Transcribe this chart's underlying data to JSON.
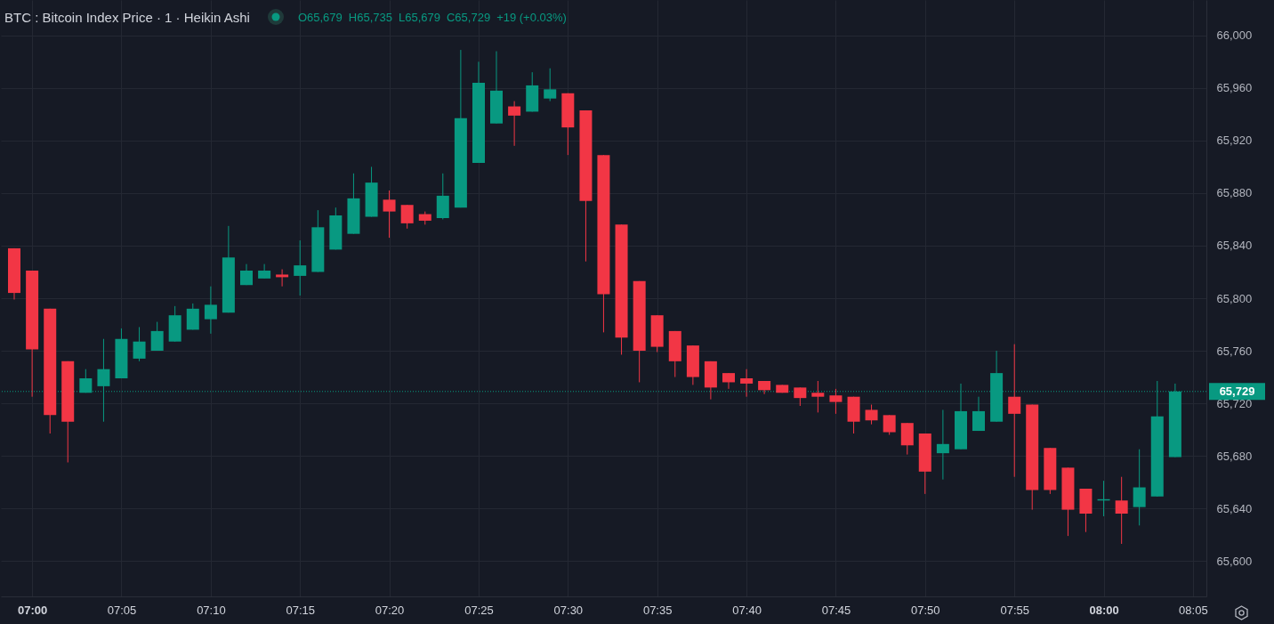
{
  "chart_data": {
    "type": "candlestick",
    "title": "BTC : Bitcoin Index Price · 1 · Heikin Ashi",
    "annotations": [
      "O65,679",
      "H65,735",
      "L65,679",
      "C65,729",
      "+19 (+0.03%)"
    ],
    "x": [
      6.9833,
      7,
      7.0167,
      7.0333,
      7.05,
      7.0667,
      7.0833,
      7.1,
      7.1167,
      7.1333,
      7.15,
      7.1667,
      7.1833,
      7.2,
      7.2167,
      7.2333,
      7.25,
      7.2667,
      7.2833,
      7.3,
      7.3167,
      7.3333,
      7.35,
      7.3667,
      7.3833,
      7.4,
      7.4167,
      7.4333,
      7.45,
      7.4667,
      7.4833,
      7.5,
      7.5167,
      7.5333,
      7.55,
      7.5667,
      7.5833,
      7.6,
      7.6167,
      7.6333,
      7.65,
      7.6667,
      7.6833,
      7.7,
      7.7167,
      7.7333,
      7.75,
      7.7667,
      7.7833,
      7.8,
      7.8167,
      7.8333,
      7.85,
      7.8667,
      7.8833,
      7.9,
      7.9167,
      7.9333,
      7.95,
      7.9667,
      7.9833,
      8,
      8.0167,
      8.0333,
      8.05,
      8.0667
    ],
    "ohlc": [
      [
        65838,
        65838,
        65799,
        65804
      ],
      [
        65821,
        65821,
        65725,
        65761
      ],
      [
        65792,
        65792,
        65697,
        65711
      ],
      [
        65752,
        65752,
        65675,
        65706
      ],
      [
        65728,
        65746,
        65728,
        65739
      ],
      [
        65733,
        65769,
        65706,
        65746
      ],
      [
        65739,
        65777,
        65739,
        65769
      ],
      [
        65754,
        65778,
        65752,
        65767
      ],
      [
        65760,
        65782,
        65760,
        65775
      ],
      [
        65767,
        65794,
        65767,
        65787
      ],
      [
        65776,
        65796,
        65776,
        65792
      ],
      [
        65784,
        65809,
        65773,
        65795
      ],
      [
        65789,
        65855,
        65789,
        65831
      ],
      [
        65810,
        65826,
        65810,
        65821
      ],
      [
        65815,
        65826,
        65815,
        65821
      ],
      [
        65818,
        65822,
        65809,
        65816
      ],
      [
        65817,
        65844,
        65802,
        65825
      ],
      [
        65820,
        65867,
        65820,
        65854
      ],
      [
        65837,
        65869,
        65837,
        65863
      ],
      [
        65849,
        65895,
        65849,
        65876
      ],
      [
        65862,
        65900,
        65862,
        65888
      ],
      [
        65875,
        65882,
        65846,
        65866
      ],
      [
        65871,
        65871,
        65853,
        65857
      ],
      [
        65864,
        65866,
        65856,
        65859
      ],
      [
        65861,
        65895,
        65860,
        65878
      ],
      [
        65869,
        65989,
        65869,
        65937
      ],
      [
        65903,
        65980,
        65903,
        65964
      ],
      [
        65933,
        65988,
        65933,
        65958
      ],
      [
        65946,
        65950,
        65916,
        65939
      ],
      [
        65942,
        65972,
        65942,
        65962
      ],
      [
        65952,
        65975,
        65950,
        65959
      ],
      [
        65956,
        65956,
        65909,
        65930
      ],
      [
        65943,
        65943,
        65828,
        65874
      ],
      [
        65909,
        65909,
        65774,
        65803
      ],
      [
        65856,
        65856,
        65757,
        65770
      ],
      [
        65813,
        65813,
        65736,
        65760
      ],
      [
        65787,
        65787,
        65759,
        65763
      ],
      [
        65775,
        65775,
        65740,
        65752
      ],
      [
        65764,
        65764,
        65734,
        65740
      ],
      [
        65752,
        65752,
        65723,
        65732
      ],
      [
        65743,
        65743,
        65731,
        65736
      ],
      [
        65739,
        65746,
        65725,
        65735
      ],
      [
        65737,
        65737,
        65727,
        65730
      ],
      [
        65734,
        65734,
        65728,
        65728
      ],
      [
        65732,
        65732,
        65718,
        65724
      ],
      [
        65728,
        65737,
        65713,
        65725
      ],
      [
        65726,
        65731,
        65712,
        65721
      ],
      [
        65725,
        65725,
        65697,
        65706
      ],
      [
        65715,
        65719,
        65704,
        65707
      ],
      [
        65711,
        65711,
        65696,
        65698
      ],
      [
        65705,
        65705,
        65681,
        65688
      ],
      [
        65697,
        65697,
        65651,
        65668
      ],
      [
        65682,
        65715,
        65662,
        65689
      ],
      [
        65685,
        65735,
        65685,
        65714
      ],
      [
        65699,
        65725,
        65699,
        65714
      ],
      [
        65706,
        65760,
        65706,
        65743
      ],
      [
        65725,
        65765,
        65664,
        65712
      ],
      [
        65719,
        65719,
        65639,
        65654
      ],
      [
        65686,
        65686,
        65651,
        65654
      ],
      [
        65671,
        65671,
        65619,
        65639
      ],
      [
        65655,
        65655,
        65622,
        65636
      ],
      [
        65646,
        65661,
        65634,
        65647
      ],
      [
        65646,
        65664,
        65613,
        65636
      ],
      [
        65641,
        65685,
        65627,
        65656
      ],
      [
        65649,
        65737,
        65649,
        65710
      ],
      [
        65679,
        65735,
        65679,
        65729
      ]
    ],
    "colors": [
      "#f23645",
      "#f23645",
      "#f23645",
      "#f23645",
      "#089981",
      "#089981",
      "#089981",
      "#089981",
      "#089981",
      "#089981",
      "#089981",
      "#089981",
      "#089981",
      "#089981",
      "#089981",
      "#f23645",
      "#089981",
      "#089981",
      "#089981",
      "#089981",
      "#089981",
      "#f23645",
      "#f23645",
      "#f23645",
      "#089981",
      "#089981",
      "#089981",
      "#089981",
      "#f23645",
      "#089981",
      "#089981",
      "#f23645",
      "#f23645",
      "#f23645",
      "#f23645",
      "#f23645",
      "#f23645",
      "#f23645",
      "#f23645",
      "#f23645",
      "#f23645",
      "#f23645",
      "#f23645",
      "#f23645",
      "#f23645",
      "#f23645",
      "#f23645",
      "#f23645",
      "#f23645",
      "#f23645",
      "#f23645",
      "#f23645",
      "#089981",
      "#089981",
      "#089981",
      "#089981",
      "#f23645",
      "#f23645",
      "#f23645",
      "#f23645",
      "#f23645",
      "#089981",
      "#f23645",
      "#089981",
      "#089981",
      "#089981"
    ],
    "xlim": [
      6.975,
      8.0917
    ],
    "xticks": [
      {
        "value": 7,
        "label": "07:00"
      },
      {
        "value": 7.0833,
        "label": "07:05"
      },
      {
        "value": 7.1667,
        "label": "07:10"
      },
      {
        "value": 7.25,
        "label": "07:15"
      },
      {
        "value": 7.3333,
        "label": "07:20"
      },
      {
        "value": 7.4167,
        "label": "07:25"
      },
      {
        "value": 7.5,
        "label": "07:30"
      },
      {
        "value": 7.5833,
        "label": "07:35"
      },
      {
        "value": 7.6667,
        "label": "07:40"
      },
      {
        "value": 7.75,
        "label": "07:45"
      },
      {
        "value": 7.8333,
        "label": "07:50"
      },
      {
        "value": 7.9167,
        "label": "07:55"
      },
      {
        "value": 8,
        "label": "08:00"
      },
      {
        "value": 8.0833,
        "label": "08:05"
      }
    ],
    "ylim": [
      65573,
      66027
    ],
    "yticks": [
      {
        "value": 65600,
        "label": "65,600"
      },
      {
        "value": 65640,
        "label": "65,640"
      },
      {
        "value": 65680,
        "label": "65,680"
      },
      {
        "value": 65720,
        "label": "65,720"
      },
      {
        "value": 65760,
        "label": "65,760"
      },
      {
        "value": 65800,
        "label": "65,800"
      },
      {
        "value": 65840,
        "label": "65,840"
      },
      {
        "value": 65880,
        "label": "65,880"
      },
      {
        "value": 65920,
        "label": "65,920"
      },
      {
        "value": 65960,
        "label": "65,960"
      },
      {
        "value": 66000,
        "label": "66,000"
      }
    ],
    "grid": true,
    "ref_lines": [
      {
        "axis": "y",
        "value": 65729,
        "label": "65,729",
        "color": "#089981",
        "line_style": "dotted"
      }
    ]
  }
}
